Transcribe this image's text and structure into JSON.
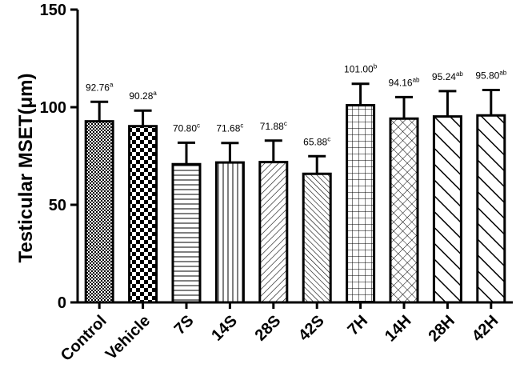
{
  "chart_data": {
    "type": "bar",
    "title": "",
    "xlabel": "",
    "ylabel": "Testicular MSET(μm)",
    "ylim": [
      0,
      150
    ],
    "yticks": [
      0,
      50,
      100,
      150
    ],
    "categories": [
      "Control",
      "Vehicle",
      "7S",
      "14S",
      "28S",
      "42S",
      "7H",
      "14H",
      "28H",
      "42H"
    ],
    "values": [
      92.76,
      90.28,
      70.8,
      71.68,
      71.88,
      65.88,
      101.0,
      94.16,
      95.24,
      95.8
    ],
    "errors": [
      10,
      8,
      11,
      10,
      11,
      9,
      11,
      11,
      13,
      13
    ],
    "value_labels": [
      "92.76",
      "90.28",
      "70.80",
      "71.68",
      "71.88",
      "65.88",
      "101.00",
      "94.16",
      "95.24",
      "95.80"
    ],
    "superscripts": [
      "a",
      "a",
      "c",
      "c",
      "c",
      "c",
      "b",
      "ab",
      "ab",
      "ab"
    ],
    "patterns": [
      "fine-checker",
      "checker",
      "horizontal-lines",
      "vertical-lines",
      "diagonal-fine",
      "diagonal-backslash",
      "grid",
      "crosshatch-diagonal",
      "diagonal-wide",
      "diagonal-wide"
    ]
  }
}
